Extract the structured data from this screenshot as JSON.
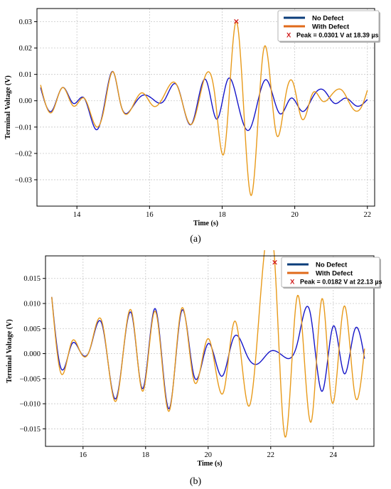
{
  "chart_data": [
    {
      "type": "line",
      "panel_label": "(a)",
      "xlabel": "Time (s)",
      "ylabel": "Terminal Voltage (V)",
      "xlim": [
        12.9,
        22.2
      ],
      "ylim": [
        -0.04,
        0.035
      ],
      "xticks": [
        14,
        16,
        18,
        20,
        22
      ],
      "yticks": [
        -0.03,
        -0.02,
        -0.01,
        0.0,
        0.01,
        0.02,
        0.03
      ],
      "ytick_labels": [
        "−0.03",
        "−0.02",
        "−0.01",
        "0.00",
        "0.01",
        "0.02",
        "0.03"
      ],
      "grid": true,
      "legend_position": "top-right",
      "series": [
        {
          "name": "No Defect",
          "color": "#1515c8",
          "legend_color": "#0b3d7a",
          "x": [
            13.0,
            13.3,
            13.6,
            13.9,
            14.2,
            14.55,
            14.75,
            15.0,
            15.2,
            15.5,
            15.8,
            16.1,
            16.4,
            16.75,
            17.15,
            17.55,
            17.85,
            18.15,
            18.45,
            18.75,
            19.2,
            19.6,
            19.9,
            20.2,
            20.5,
            20.8,
            21.1,
            21.4,
            21.7,
            22.0
          ],
          "y": [
            0.005,
            -0.004,
            0.005,
            -0.001,
            0.001,
            -0.011,
            -0.002,
            0.011,
            -0.001,
            -0.003,
            0.002,
            0.0005,
            0.0,
            0.006,
            -0.009,
            0.008,
            -0.007,
            0.008,
            -0.002,
            -0.011,
            0.008,
            -0.005,
            0.001,
            -0.004,
            0.0015,
            0.004,
            -0.001,
            0.001,
            -0.002,
            0.0005
          ]
        },
        {
          "name": "With Defect",
          "color": "#e89a1a",
          "legend_color": "#e06a1a",
          "x": [
            13.0,
            13.3,
            13.6,
            13.9,
            14.2,
            14.55,
            14.75,
            15.0,
            15.2,
            15.5,
            15.8,
            16.1,
            16.4,
            16.75,
            17.15,
            17.5,
            17.8,
            18.05,
            18.39,
            18.8,
            19.15,
            19.5,
            19.75,
            19.95,
            20.2,
            20.5,
            20.75,
            21.0,
            21.3,
            21.6,
            21.85,
            22.0
          ],
          "y": [
            0.006,
            -0.0045,
            0.005,
            -0.002,
            0.001,
            -0.01,
            -0.003,
            0.011,
            -0.001,
            -0.003,
            0.003,
            -0.002,
            0.002,
            0.006,
            -0.009,
            0.008,
            0.002,
            -0.02,
            0.0301,
            -0.036,
            0.02,
            -0.013,
            0.002,
            0.007,
            -0.007,
            0.003,
            0.0,
            0.002,
            0.004,
            -0.003,
            -0.002,
            0.004
          ]
        }
      ],
      "peak": {
        "x": 18.39,
        "y": 0.0301,
        "marker": "X",
        "color": "#d01a1a",
        "label": "Peak = 0.0301 V at 18.39 µs"
      }
    },
    {
      "type": "line",
      "panel_label": "(b)",
      "xlabel": "Time (s)",
      "ylabel": "Terminal Voltage (V)",
      "xlim": [
        14.8,
        25.3
      ],
      "ylim": [
        -0.0185,
        0.0195
      ],
      "xticks": [
        16,
        18,
        20,
        22,
        24
      ],
      "yticks": [
        -0.015,
        -0.01,
        -0.005,
        0.0,
        0.005,
        0.01,
        0.015
      ],
      "ytick_labels": [
        "−0.015",
        "−0.010",
        "−0.005",
        "0.000",
        "0.005",
        "0.010",
        "0.015"
      ],
      "grid": true,
      "legend_position": "top-right",
      "series": [
        {
          "name": "No Defect",
          "color": "#1515c8",
          "legend_color": "#0b3d7a",
          "x": [
            15.0,
            15.3,
            15.65,
            15.9,
            16.2,
            16.6,
            17.05,
            17.55,
            17.9,
            18.3,
            18.75,
            19.15,
            19.55,
            20.0,
            20.45,
            20.8,
            21.25,
            21.6,
            22.0,
            22.4,
            22.85,
            23.25,
            23.65,
            24.0,
            24.35,
            24.7,
            25.0
          ],
          "y": [
            0.0113,
            -0.003,
            0.002,
            0.0005,
            0.0005,
            0.006,
            -0.009,
            0.008,
            -0.007,
            0.009,
            -0.011,
            0.0085,
            -0.0045,
            0.002,
            -0.0045,
            0.003,
            -0.0005,
            -0.002,
            0.0005,
            -0.0005,
            0.002,
            0.0085,
            -0.0075,
            0.0055,
            -0.004,
            0.005,
            -0.001
          ]
        },
        {
          "name": "With Defect",
          "color": "#e89a1a",
          "legend_color": "#e06a1a",
          "x": [
            15.0,
            15.3,
            15.65,
            15.9,
            16.2,
            16.6,
            17.05,
            17.55,
            17.9,
            18.3,
            18.75,
            19.15,
            19.55,
            20.0,
            20.5,
            20.85,
            21.3,
            21.65,
            22.13,
            22.45,
            22.85,
            23.3,
            23.65,
            23.95,
            24.35,
            24.7,
            25.0
          ],
          "y": [
            0.0113,
            -0.004,
            0.0025,
            0.0005,
            0.0005,
            0.0065,
            -0.0095,
            0.0085,
            -0.0075,
            0.0085,
            -0.0115,
            0.009,
            -0.0055,
            0.003,
            -0.0075,
            0.0065,
            -0.0105,
            0.0095,
            0.0182,
            -0.0165,
            0.0115,
            -0.0135,
            0.011,
            -0.0095,
            0.0095,
            -0.0085,
            0.001
          ]
        }
      ],
      "peak": {
        "x": 22.13,
        "y": 0.0182,
        "marker": "X",
        "color": "#d01a1a",
        "label": "Peak = 0.0182 V at 22.13 µs"
      }
    }
  ]
}
